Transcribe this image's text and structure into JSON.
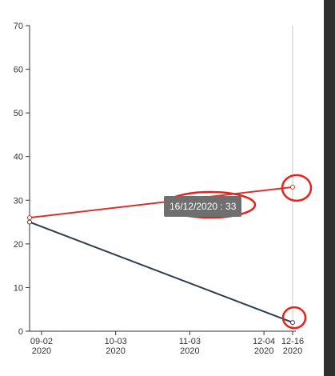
{
  "chart_data": {
    "type": "line",
    "x": [
      "2020-08-28",
      "2020-12-16"
    ],
    "x_tick_labels": [
      {
        "date": "2020-09-02",
        "line1": "09-02",
        "line2": "2020"
      },
      {
        "date": "2020-10-03",
        "line1": "10-03",
        "line2": "2020"
      },
      {
        "date": "2020-11-03",
        "line1": "11-03",
        "line2": "2020"
      },
      {
        "date": "2020-12-04",
        "line1": "12-04",
        "line2": "2020"
      },
      {
        "date": "2020-12-16",
        "line1": "12-16",
        "line2": "2020"
      }
    ],
    "y_ticks": [
      0,
      10,
      20,
      30,
      40,
      50,
      60,
      70
    ],
    "ylim": [
      0,
      70
    ],
    "xlim": [
      "2020-08-28",
      "2020-12-16"
    ],
    "series": [
      {
        "values": [
          26,
          33
        ],
        "color": "#d9342b"
      },
      {
        "values": [
          25,
          2
        ],
        "color": "#2c3e50"
      }
    ],
    "crosshair_date": "2020-12-16",
    "tooltip": "16/12/2020 : 33",
    "title": "",
    "xlabel": "",
    "ylabel": "",
    "grid": false,
    "annotation_color": "#e8211a"
  }
}
